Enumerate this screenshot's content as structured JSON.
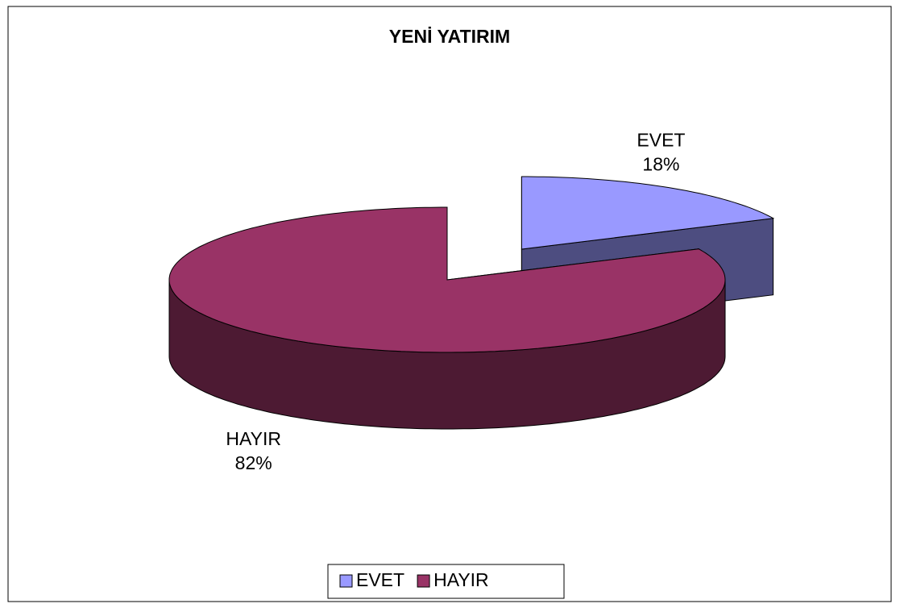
{
  "chart_data": {
    "type": "pie",
    "title": "YENİ YATIRIM",
    "categories": [
      "EVET",
      "HAYIR"
    ],
    "values": [
      18,
      82
    ],
    "value_labels": [
      "18%",
      "82%"
    ],
    "colors": [
      "#9999ff",
      "#993366"
    ],
    "legend": "bottom"
  }
}
